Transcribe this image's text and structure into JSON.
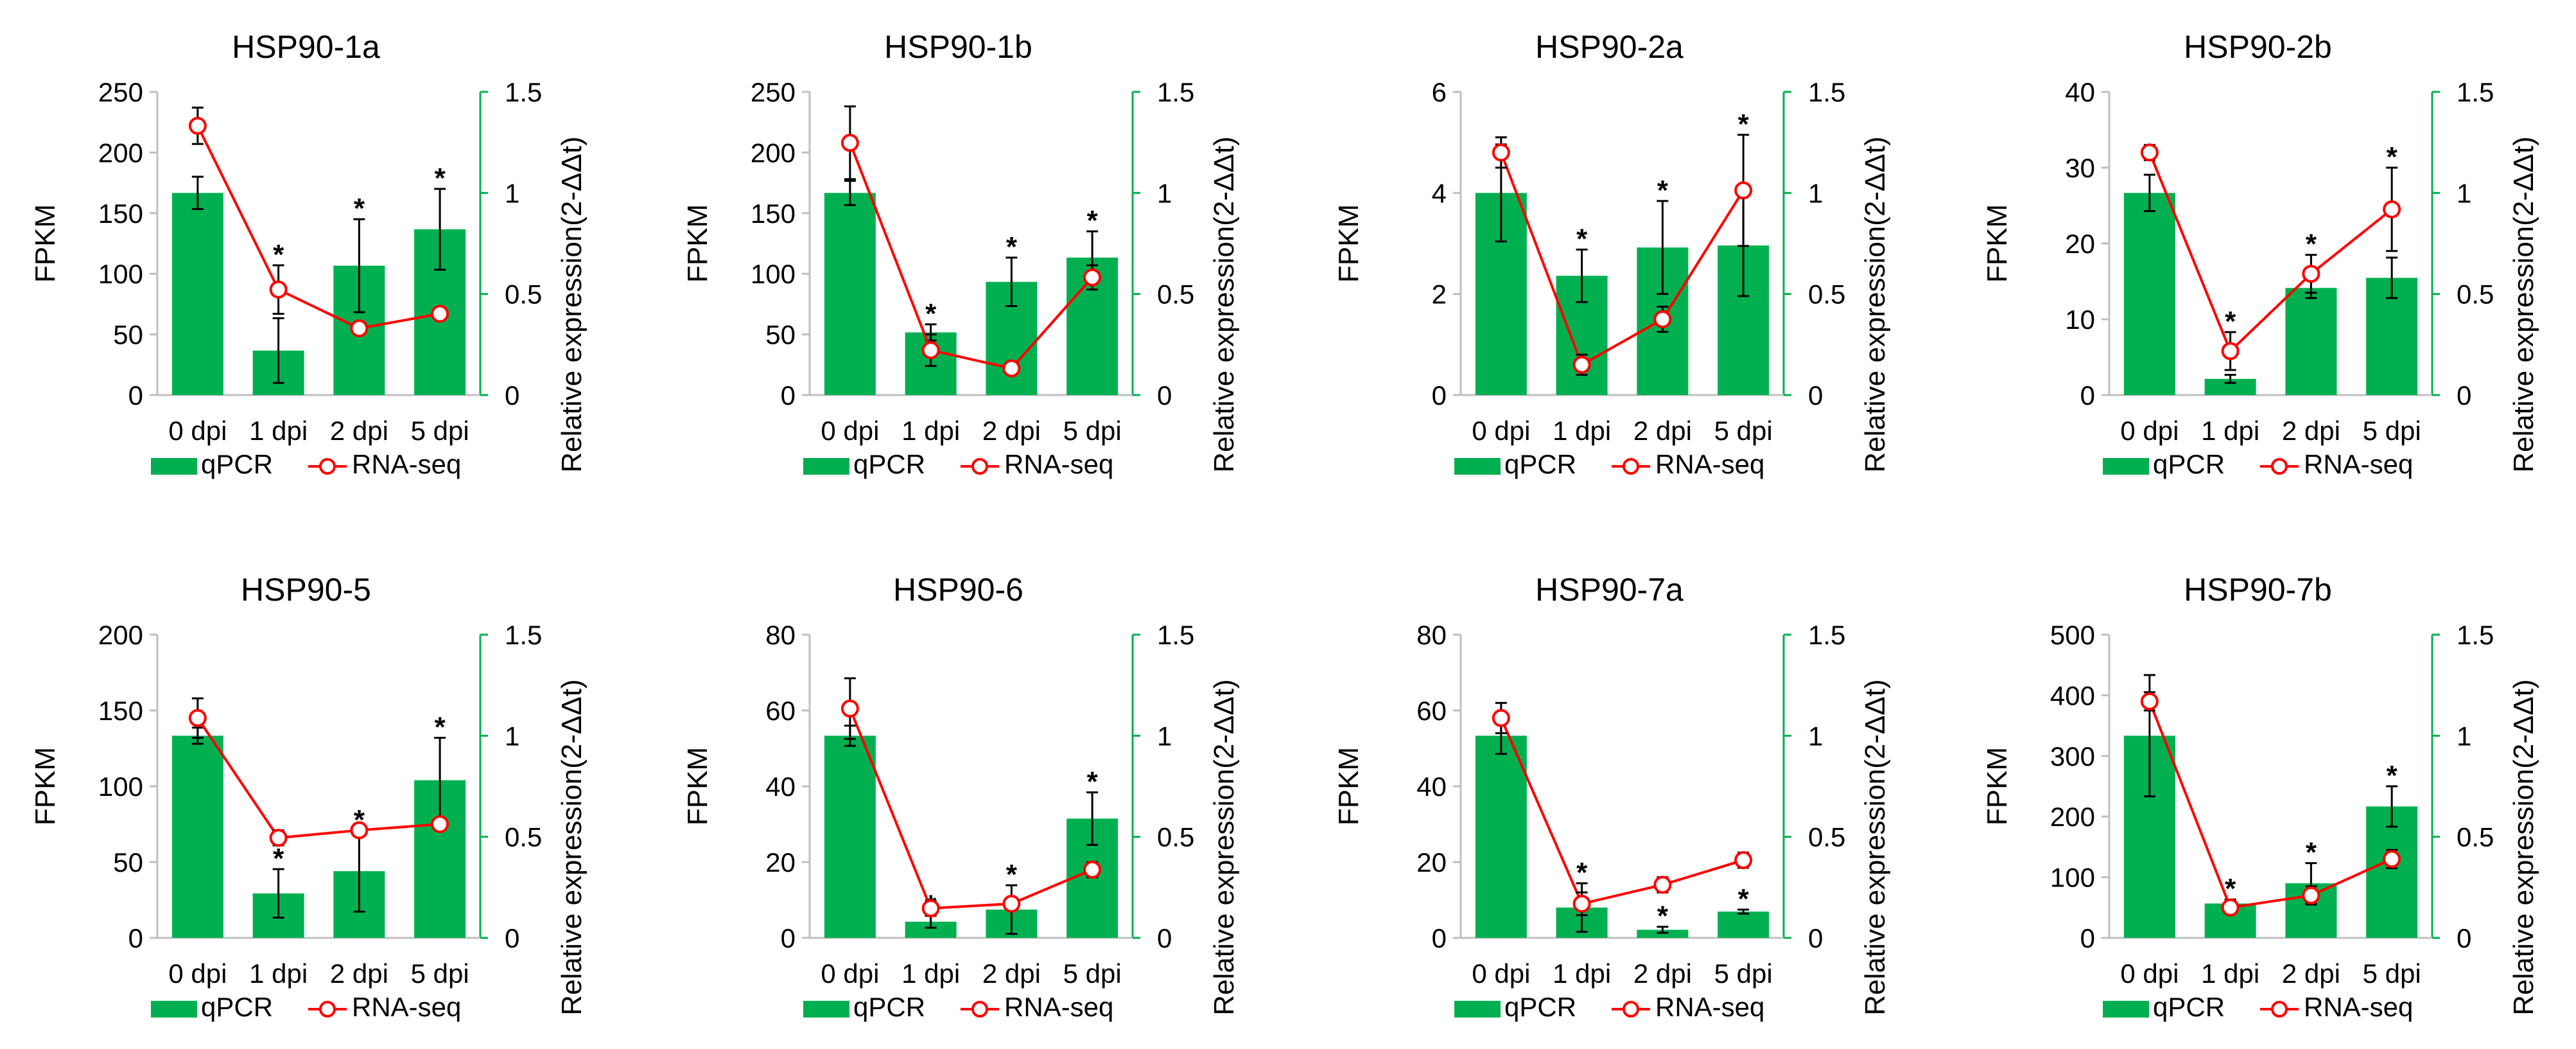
{
  "figure": {
    "legend_labels": [
      "qPCR",
      "RNA-seq"
    ],
    "colors": {
      "bar": "#00B050",
      "line": "#FF0000",
      "axis_right": "#00B050",
      "axis_left": "#bfbfbf",
      "text": "#000000"
    }
  },
  "chart_data": [
    {
      "type": "bar",
      "title": "HSP90-1a",
      "categories": [
        "0 dpi",
        "1 dpi",
        "2 dpi",
        "5 dpi"
      ],
      "ylabel": "FPKM",
      "y2label": "Relative expression(2-ΔΔt)",
      "ylim": [
        0,
        250
      ],
      "yticks": [
        "0",
        "50",
        "100",
        "150",
        "200",
        "250"
      ],
      "y2lim": [
        0,
        1.5
      ],
      "y2ticks": [
        "0",
        "0.5",
        "1",
        "1.5"
      ],
      "series": [
        {
          "name": "qPCR",
          "axis": "right",
          "type": "bar",
          "values": [
            1.0,
            0.22,
            0.64,
            0.82
          ],
          "errors": [
            0.08,
            0.16,
            0.23,
            0.2
          ],
          "significant": [
            false,
            false,
            true,
            true
          ]
        },
        {
          "name": "RNA-seq",
          "axis": "left",
          "type": "line",
          "values": [
            222,
            87,
            55,
            67
          ],
          "errors": [
            15,
            20,
            4,
            3
          ],
          "significant": [
            false,
            true,
            false,
            false
          ]
        }
      ],
      "legend": [
        "qPCR",
        "RNA-seq"
      ]
    },
    {
      "type": "bar",
      "title": "HSP90-1b",
      "categories": [
        "0 dpi",
        "1 dpi",
        "2 dpi",
        "5 dpi"
      ],
      "ylabel": "FPKM",
      "y2label": "Relative expression(2-ΔΔt)",
      "ylim": [
        0,
        250
      ],
      "yticks": [
        "0",
        "50",
        "100",
        "150",
        "200",
        "250"
      ],
      "y2lim": [
        0,
        1.5
      ],
      "y2ticks": [
        "0",
        "0.5",
        "1",
        "1.5"
      ],
      "series": [
        {
          "name": "qPCR",
          "axis": "right",
          "type": "bar",
          "values": [
            1.0,
            0.31,
            0.56,
            0.68
          ],
          "errors": [
            0.06,
            0.04,
            0.12,
            0.13
          ],
          "significant": [
            false,
            true,
            true,
            true
          ]
        },
        {
          "name": "RNA-seq",
          "axis": "left",
          "type": "line",
          "values": [
            208,
            37,
            22,
            97
          ],
          "errors": [
            30,
            13,
            3,
            10
          ],
          "significant": [
            false,
            false,
            false,
            false
          ]
        }
      ],
      "legend": [
        "qPCR",
        "RNA-seq"
      ]
    },
    {
      "type": "bar",
      "title": "HSP90-2a",
      "categories": [
        "0 dpi",
        "1 dpi",
        "2 dpi",
        "5 dpi"
      ],
      "ylabel": "FPKM",
      "y2label": "Relative expression(2-ΔΔt)",
      "ylim": [
        0,
        6
      ],
      "yticks": [
        "0",
        "2",
        "4",
        "6"
      ],
      "y2lim": [
        0,
        1.5
      ],
      "y2ticks": [
        "0",
        "0.5",
        "1",
        "1.5"
      ],
      "series": [
        {
          "name": "qPCR",
          "axis": "right",
          "type": "bar",
          "values": [
            1.0,
            0.59,
            0.73,
            0.74
          ],
          "errors": [
            0.24,
            0.13,
            0.23,
            0.25
          ],
          "significant": [
            false,
            true,
            true,
            false
          ]
        },
        {
          "name": "RNA-seq",
          "axis": "left",
          "type": "line",
          "values": [
            4.8,
            0.6,
            1.5,
            4.05
          ],
          "errors": [
            0.3,
            0.2,
            0.25,
            1.1
          ],
          "significant": [
            false,
            false,
            false,
            true
          ]
        }
      ],
      "legend": [
        "qPCR",
        "RNA-seq"
      ]
    },
    {
      "type": "bar",
      "title": "HSP90-2b",
      "categories": [
        "0 dpi",
        "1 dpi",
        "2 dpi",
        "5 dpi"
      ],
      "ylabel": "FPKM",
      "y2label": "Relative expression(2-ΔΔt)",
      "ylim": [
        0,
        40
      ],
      "yticks": [
        "0",
        "10",
        "20",
        "30",
        "40"
      ],
      "y2lim": [
        0,
        1.5
      ],
      "y2ticks": [
        "0",
        "0.5",
        "1",
        "1.5"
      ],
      "series": [
        {
          "name": "qPCR",
          "axis": "right",
          "type": "bar",
          "values": [
            1.0,
            0.08,
            0.53,
            0.58
          ],
          "errors": [
            0.09,
            0.02,
            0.05,
            0.1
          ],
          "significant": [
            false,
            false,
            false,
            false
          ]
        },
        {
          "name": "RNA-seq",
          "axis": "left",
          "type": "line",
          "values": [
            32,
            5.8,
            16,
            24.5
          ],
          "errors": [
            1,
            2.5,
            2.5,
            5.5
          ],
          "significant": [
            false,
            true,
            true,
            true
          ]
        }
      ],
      "legend": [
        "qPCR",
        "RNA-seq"
      ]
    },
    {
      "type": "bar",
      "title": "HSP90-5",
      "categories": [
        "0 dpi",
        "1 dpi",
        "2 dpi",
        "5 dpi"
      ],
      "ylabel": "FPKM",
      "y2label": "Relative expression(2-ΔΔt)",
      "ylim": [
        0,
        200
      ],
      "yticks": [
        "0",
        "50",
        "100",
        "150",
        "200"
      ],
      "y2lim": [
        0,
        1.5
      ],
      "y2ticks": [
        "0",
        "0.5",
        "1",
        "1.5"
      ],
      "series": [
        {
          "name": "qPCR",
          "axis": "right",
          "type": "bar",
          "values": [
            1.0,
            0.22,
            0.33,
            0.78
          ],
          "errors": [
            0.04,
            0.12,
            0.2,
            0.21
          ],
          "significant": [
            false,
            true,
            true,
            true
          ]
        },
        {
          "name": "RNA-seq",
          "axis": "left",
          "type": "line",
          "values": [
            145,
            66,
            71,
            75
          ],
          "errors": [
            13,
            5,
            4,
            3
          ],
          "significant": [
            false,
            false,
            false,
            false
          ]
        }
      ],
      "legend": [
        "qPCR",
        "RNA-seq"
      ]
    },
    {
      "type": "bar",
      "title": "HSP90-6",
      "categories": [
        "0 dpi",
        "1 dpi",
        "2 dpi",
        "5 dpi"
      ],
      "ylabel": "FPKM",
      "y2label": "Relative expression(2-ΔΔt)",
      "ylim": [
        0,
        80
      ],
      "yticks": [
        "0",
        "20",
        "40",
        "60",
        "80"
      ],
      "y2lim": [
        0,
        1.5
      ],
      "y2ticks": [
        "0",
        "0.5",
        "1",
        "1.5"
      ],
      "series": [
        {
          "name": "qPCR",
          "axis": "right",
          "type": "bar",
          "values": [
            1.0,
            0.08,
            0.14,
            0.59
          ],
          "errors": [
            0.05,
            0.03,
            0.12,
            0.13
          ],
          "significant": [
            false,
            true,
            true,
            true
          ]
        },
        {
          "name": "RNA-seq",
          "axis": "left",
          "type": "line",
          "values": [
            60.5,
            7.8,
            9,
            18
          ],
          "errors": [
            8,
            2,
            1.5,
            2
          ],
          "significant": [
            false,
            false,
            false,
            false
          ]
        }
      ],
      "legend": [
        "qPCR",
        "RNA-seq"
      ]
    },
    {
      "type": "bar",
      "title": "HSP90-7a",
      "categories": [
        "0 dpi",
        "1 dpi",
        "2 dpi",
        "5 dpi"
      ],
      "ylabel": "FPKM",
      "y2label": "Relative expression(2-ΔΔt)",
      "ylim": [
        0,
        80
      ],
      "yticks": [
        "0",
        "20",
        "40",
        "60",
        "80"
      ],
      "y2lim": [
        0,
        1.5
      ],
      "y2ticks": [
        "0",
        "0.5",
        "1",
        "1.5"
      ],
      "series": [
        {
          "name": "qPCR",
          "axis": "right",
          "type": "bar",
          "values": [
            1.0,
            0.15,
            0.04,
            0.13
          ],
          "errors": [
            0.09,
            0.12,
            0.015,
            0.01
          ],
          "significant": [
            false,
            true,
            true,
            true
          ]
        },
        {
          "name": "RNA-seq",
          "axis": "left",
          "type": "line",
          "values": [
            58,
            9,
            14,
            20.5
          ],
          "errors": [
            4,
            3,
            2,
            2
          ],
          "significant": [
            false,
            false,
            false,
            false
          ]
        }
      ],
      "legend": [
        "qPCR",
        "RNA-seq"
      ]
    },
    {
      "type": "bar",
      "title": "HSP90-7b",
      "categories": [
        "0 dpi",
        "1 dpi",
        "2 dpi",
        "5 dpi"
      ],
      "ylabel": "FPKM",
      "y2label": "Relative expression(2-ΔΔt)",
      "ylim": [
        0,
        500
      ],
      "yticks": [
        "0",
        "100",
        "200",
        "300",
        "400",
        "500"
      ],
      "y2lim": [
        0,
        1.5
      ],
      "y2ticks": [
        "0",
        "0.5",
        "1",
        "1.5"
      ],
      "series": [
        {
          "name": "qPCR",
          "axis": "right",
          "type": "bar",
          "values": [
            1.0,
            0.17,
            0.27,
            0.65
          ],
          "errors": [
            0.3,
            0.02,
            0.1,
            0.1
          ],
          "significant": [
            false,
            true,
            true,
            true
          ]
        },
        {
          "name": "RNA-seq",
          "axis": "left",
          "type": "line",
          "values": [
            390,
            50,
            70,
            130
          ],
          "errors": [
            15,
            5,
            15,
            15
          ],
          "significant": [
            false,
            false,
            false,
            false
          ]
        }
      ],
      "legend": [
        "qPCR",
        "RNA-seq"
      ]
    }
  ]
}
